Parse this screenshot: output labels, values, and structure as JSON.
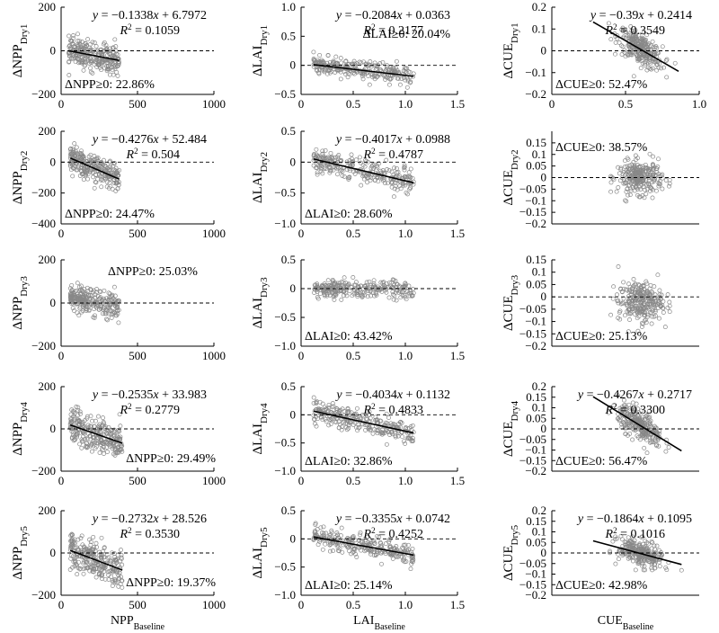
{
  "chart_data": [
    {
      "type": "scatter",
      "var": "NPP",
      "dry": "1",
      "xlim": [
        0,
        1000
      ],
      "ylim": [
        -200,
        200
      ],
      "xticks": [
        0,
        500,
        1000
      ],
      "yticks": [
        -200,
        0,
        200
      ],
      "eq": "−0.1338",
      "int": "6.7972",
      "r2": "0.1059",
      "pct": "22.86%",
      "slope": -0.1338,
      "intercept": 6.7972,
      "xfit": [
        50,
        380
      ],
      "noise": 32,
      "eqPos": "top-right",
      "pctPos": "bottom-left",
      "showXTicks": true,
      "showXLabel": false
    },
    {
      "type": "scatter",
      "var": "LAI",
      "dry": "1",
      "xlim": [
        0,
        1.5
      ],
      "ylim": [
        -0.5,
        1.0
      ],
      "xticks": [
        0,
        0.5,
        1.0,
        1.5
      ],
      "yticks": [
        -0.5,
        0,
        0.5,
        1.0
      ],
      "eq": "−0.2084",
      "int": "0.0363",
      "r2": "0.2177",
      "pct": "20.04%",
      "slope": -0.2084,
      "intercept": 0.0363,
      "xfit": [
        0.12,
        1.08
      ],
      "noise": 0.08,
      "eqPos": "top-right",
      "pctPos": "mid-right",
      "showXTicks": true,
      "showXLabel": false
    },
    {
      "type": "scatter",
      "var": "CUE",
      "dry": "1",
      "xlim": [
        0,
        1
      ],
      "ylim": [
        -0.2,
        0.2
      ],
      "xticks": [
        0,
        0.5,
        1
      ],
      "yticks": [
        -0.2,
        -0.1,
        0,
        0.1,
        0.2
      ],
      "eq": "−0.39",
      "int": "0.2414",
      "r2": "0.3549",
      "pct": "52.47%",
      "slope": -0.39,
      "intercept": 0.2414,
      "xfit": [
        0.28,
        0.86
      ],
      "noise": 0.035,
      "eqPos": "top-right",
      "pctPos": "bottom-left",
      "showXTicks": true,
      "showXLabel": false
    },
    {
      "type": "scatter",
      "var": "NPP",
      "dry": "2",
      "xlim": [
        0,
        1000
      ],
      "ylim": [
        -400,
        200
      ],
      "xticks": [
        0,
        500,
        1000
      ],
      "yticks": [
        -400,
        -200,
        0,
        200
      ],
      "eq": "−0.4276",
      "int": "52.484",
      "r2": "0.504",
      "pct": "24.47%",
      "slope": -0.4276,
      "intercept": 52.484,
      "xfit": [
        60,
        380
      ],
      "noise": 45,
      "eqPos": "top-right",
      "pctPos": "bottom-left",
      "showXTicks": true,
      "showXLabel": false
    },
    {
      "type": "scatter",
      "var": "LAI",
      "dry": "2",
      "xlim": [
        0,
        1.5
      ],
      "ylim": [
        -1.0,
        0.5
      ],
      "xticks": [
        0,
        0.5,
        1.0,
        1.5
      ],
      "yticks": [
        -1.0,
        -0.5,
        0,
        0.5
      ],
      "eq": "−0.4017",
      "int": "0.0988",
      "r2": "0.4787",
      "pct": "28.60%",
      "slope": -0.4017,
      "intercept": 0.0988,
      "xfit": [
        0.12,
        1.08
      ],
      "noise": 0.1,
      "eqPos": "top-right",
      "pctPos": "bottom-left",
      "showXTicks": true,
      "showXLabel": false
    },
    {
      "type": "scatter",
      "var": "CUE",
      "dry": "2",
      "xlim": [
        0,
        1
      ],
      "ylim": [
        -0.2,
        0.2
      ],
      "xticks": [
        0,
        0.5,
        1
      ],
      "yticks": [
        -0.2,
        -0.15,
        -0.1,
        -0.05,
        0,
        0.05,
        0.1,
        0.15
      ],
      "eq": "",
      "int": "",
      "r2": "",
      "pct": "38.57%",
      "slope": 0,
      "intercept": 0,
      "xfit": [
        0.4,
        0.8
      ],
      "noise": 0.035,
      "eqPos": "none",
      "pctPos": "top-left",
      "showXTicks": false,
      "showXLabel": false
    },
    {
      "type": "scatter",
      "var": "NPP",
      "dry": "3",
      "xlim": [
        0,
        1000
      ],
      "ylim": [
        -200,
        200
      ],
      "xticks": [
        0,
        500,
        1000
      ],
      "yticks": [
        -200,
        0,
        200
      ],
      "eq": "",
      "int": "",
      "r2": "",
      "pct": "25.03%",
      "slope": -0.15,
      "intercept": 0,
      "xfit": [
        60,
        380
      ],
      "noise": 40,
      "eqPos": "none",
      "pctPos": "top-right",
      "showXTicks": true,
      "showXLabel": false
    },
    {
      "type": "scatter",
      "var": "LAI",
      "dry": "3",
      "xlim": [
        0,
        1.5
      ],
      "ylim": [
        -1.0,
        0.5
      ],
      "xticks": [
        0,
        0.5,
        1.0,
        1.5
      ],
      "yticks": [
        -1.0,
        -0.5,
        0,
        0.5
      ],
      "eq": "",
      "int": "",
      "r2": "",
      "pct": "43.42%",
      "slope": 0,
      "intercept": 0,
      "xfit": [
        0.12,
        1.08
      ],
      "noise": 0.08,
      "eqPos": "none",
      "pctPos": "bottom-left",
      "showXTicks": true,
      "showXLabel": false
    },
    {
      "type": "scatter",
      "var": "CUE",
      "dry": "3",
      "xlim": [
        0,
        1
      ],
      "ylim": [
        -0.2,
        0.15
      ],
      "xticks": [
        0,
        0.5,
        1
      ],
      "yticks": [
        -0.2,
        -0.15,
        -0.1,
        -0.05,
        0,
        0.05,
        0.1,
        0.15
      ],
      "eq": "",
      "int": "",
      "r2": "",
      "pct": "25.13%",
      "slope": 0,
      "intercept": -0.02,
      "xfit": [
        0.4,
        0.8
      ],
      "noise": 0.04,
      "eqPos": "none",
      "pctPos": "bottom-left",
      "showXTicks": false,
      "showXLabel": false
    },
    {
      "type": "scatter",
      "var": "NPP",
      "dry": "4",
      "xlim": [
        0,
        1000
      ],
      "ylim": [
        -200,
        200
      ],
      "xticks": [
        0,
        500,
        1000
      ],
      "yticks": [
        -200,
        0,
        200
      ],
      "eq": "−0.2535",
      "int": "33.983",
      "r2": "0.2779",
      "pct": "29.49%",
      "slope": -0.2535,
      "intercept": 33.983,
      "xfit": [
        60,
        400
      ],
      "noise": 40,
      "eqPos": "top-right",
      "pctPos": "bottom-right",
      "showXTicks": true,
      "showXLabel": false
    },
    {
      "type": "scatter",
      "var": "LAI",
      "dry": "4",
      "xlim": [
        0,
        1.5
      ],
      "ylim": [
        -1.0,
        0.5
      ],
      "xticks": [
        0,
        0.5,
        1.0,
        1.5
      ],
      "yticks": [
        -1.0,
        -0.5,
        0,
        0.5
      ],
      "eq": "−0.4034",
      "int": "0.1132",
      "r2": "0.4833",
      "pct": "32.86%",
      "slope": -0.4034,
      "intercept": 0.1132,
      "xfit": [
        0.12,
        1.08
      ],
      "noise": 0.1,
      "eqPos": "top-right",
      "pctPos": "bottom-left",
      "showXTicks": true,
      "showXLabel": false
    },
    {
      "type": "scatter",
      "var": "CUE",
      "dry": "4",
      "xlim": [
        0,
        1
      ],
      "ylim": [
        -0.2,
        0.2
      ],
      "xticks": [
        0,
        0.5,
        1
      ],
      "yticks": [
        -0.2,
        -0.15,
        -0.1,
        -0.05,
        0,
        0.05,
        0.1,
        0.15,
        0.2
      ],
      "eq": "−0.4267",
      "int": "0.2717",
      "r2": "0.3300",
      "pct": "56.47%",
      "slope": -0.4267,
      "intercept": 0.2717,
      "xfit": [
        0.28,
        0.88
      ],
      "noise": 0.035,
      "eqPos": "top-right",
      "pctPos": "bottom-left",
      "showXTicks": false,
      "showXLabel": false
    },
    {
      "type": "scatter",
      "var": "NPP",
      "dry": "5",
      "xlim": [
        0,
        1000
      ],
      "ylim": [
        -200,
        200
      ],
      "xticks": [
        0,
        500,
        1000
      ],
      "yticks": [
        -200,
        0,
        200
      ],
      "eq": "−0.2732",
      "int": "28.526",
      "r2": "0.3530",
      "pct": "19.37%",
      "slope": -0.2732,
      "intercept": 28.526,
      "xfit": [
        60,
        400
      ],
      "noise": 40,
      "eqPos": "top-right",
      "pctPos": "bottom-right",
      "showXTicks": true,
      "showXLabel": true
    },
    {
      "type": "scatter",
      "var": "LAI",
      "dry": "5",
      "xlim": [
        0,
        1.5
      ],
      "ylim": [
        -1.0,
        0.5
      ],
      "xticks": [
        0,
        0.5,
        1.0,
        1.5
      ],
      "yticks": [
        -1.0,
        -0.5,
        0,
        0.5
      ],
      "eq": "−0.3355",
      "int": "0.0742",
      "r2": "0.4252",
      "pct": "25.14%",
      "slope": -0.3355,
      "intercept": 0.0742,
      "xfit": [
        0.12,
        1.08
      ],
      "noise": 0.09,
      "eqPos": "top-right",
      "pctPos": "bottom-left",
      "showXTicks": true,
      "showXLabel": true
    },
    {
      "type": "scatter",
      "var": "CUE",
      "dry": "5",
      "xlim": [
        0,
        1
      ],
      "ylim": [
        -0.2,
        0.2
      ],
      "xticks": [
        0,
        0.5,
        1
      ],
      "yticks": [
        -0.2,
        -0.15,
        -0.1,
        -0.05,
        0,
        0.05,
        0.1,
        0.15,
        0.2
      ],
      "eq": "−0.1864",
      "int": "0.1095",
      "r2": "0.1016",
      "pct": "42.98%",
      "slope": -0.1864,
      "intercept": 0.1095,
      "xfit": [
        0.28,
        0.88
      ],
      "noise": 0.03,
      "eqPos": "top-right",
      "pctPos": "bottom-left",
      "showXTicks": false,
      "showXLabel": true
    }
  ],
  "labels": {
    "baseline_sub": "Baseline",
    "dry_sub_prefix": "Dry",
    "delta": "Δ",
    "ge_zero": "≥0: ",
    "r2_label": "R",
    "eq_y": "y",
    "eq_x": "x",
    "eq_eq": " = ",
    "eq_plus": " + "
  }
}
